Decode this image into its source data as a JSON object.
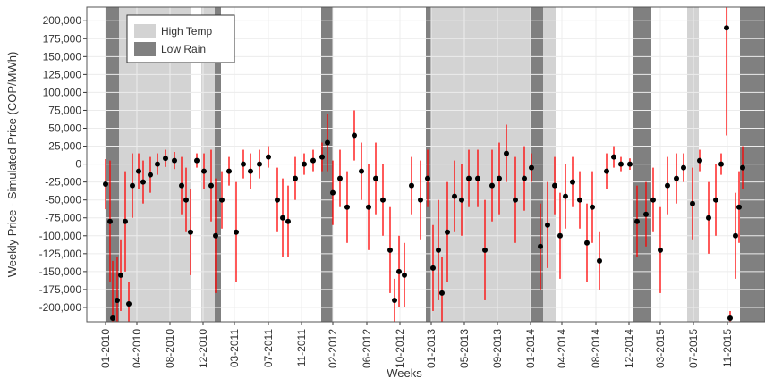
{
  "chart_data": {
    "type": "errorbar",
    "x_label": "Weeks",
    "y_label": "Weekly Price - Simulated Price (COP/MWh)",
    "xlim": [
      -2.1,
      73.7
    ],
    "ylim": [
      -220000,
      219000
    ],
    "xticks": [
      {
        "value": 0,
        "label": "01-2010"
      },
      {
        "value": 3.5,
        "label": "04-2010"
      },
      {
        "value": 7.2,
        "label": "08-2010"
      },
      {
        "value": 10.9,
        "label": "12-2010"
      },
      {
        "value": 14.4,
        "label": "03-2011"
      },
      {
        "value": 18.2,
        "label": "07-2011"
      },
      {
        "value": 21.9,
        "label": "11-2011"
      },
      {
        "value": 25.4,
        "label": "02-2012"
      },
      {
        "value": 29.2,
        "label": "06-2012"
      },
      {
        "value": 32.9,
        "label": "10-2012"
      },
      {
        "value": 36.4,
        "label": "01-2013"
      },
      {
        "value": 40.1,
        "label": "05-2013"
      },
      {
        "value": 43.8,
        "label": "09-2013"
      },
      {
        "value": 47.5,
        "label": "01-2014"
      },
      {
        "value": 51,
        "label": "04-2014"
      },
      {
        "value": 54.8,
        "label": "08-2014"
      },
      {
        "value": 58.5,
        "label": "12-2014"
      },
      {
        "value": 62,
        "label": "03-2015"
      },
      {
        "value": 65.7,
        "label": "07-2015"
      },
      {
        "value": 69.5,
        "label": "11-2015"
      }
    ],
    "yticks": [
      {
        "value": -200000,
        "label": "-200,000"
      },
      {
        "value": -175000,
        "label": "-175,000"
      },
      {
        "value": -150000,
        "label": "-150,000"
      },
      {
        "value": -125000,
        "label": "-125,000"
      },
      {
        "value": -100000,
        "label": "-100,000"
      },
      {
        "value": -75000,
        "label": "-75,000"
      },
      {
        "value": -50000,
        "label": "-50,000"
      },
      {
        "value": -25000,
        "label": "-25,000"
      },
      0,
      {
        "value": 25000,
        "label": "25,000"
      },
      {
        "value": 50000,
        "label": "50,000"
      },
      {
        "value": 75000,
        "label": "75,000"
      },
      {
        "value": 100000,
        "label": "100,000"
      },
      {
        "value": 125000,
        "label": "125,000"
      },
      {
        "value": 150000,
        "label": "150,000"
      },
      {
        "value": 175000,
        "label": "175,000"
      },
      {
        "value": 200000,
        "label": "200,000"
      }
    ],
    "regions": [
      {
        "name": "High Temp",
        "color": "#d3d3d3",
        "spans": [
          [
            1.5,
            9.5
          ],
          [
            10.7,
            12.2
          ],
          [
            35.8,
            47.5
          ],
          [
            48.9,
            50.3
          ],
          [
            65,
            66.3
          ]
        ]
      },
      {
        "name": "Low Rain",
        "color": "#808080",
        "spans": [
          [
            0.1,
            1.5
          ],
          [
            12.2,
            12.9
          ],
          [
            24.1,
            25.4
          ],
          [
            35.8,
            36.4
          ],
          [
            47.5,
            48.9
          ],
          [
            59,
            61
          ],
          [
            70.9,
            73.7
          ]
        ]
      }
    ],
    "series": [
      {
        "color": "#ff0000",
        "x": [
          0,
          0.5,
          0.8,
          1.3,
          1.7,
          2.2,
          2.6,
          3,
          3.7,
          4.2,
          5,
          5.8,
          6.7,
          7.7,
          8.5,
          9,
          9.5,
          10.2,
          11,
          11.8,
          12.3,
          13,
          13.8,
          14.6,
          15.4,
          16.2,
          17.2,
          18.2,
          19.2,
          19.8,
          20.4,
          21.2,
          22.2,
          23.2,
          24.2,
          24.8,
          25.4,
          26.2,
          27,
          27.8,
          28.6,
          29.4,
          30.2,
          31,
          31.8,
          32.3,
          32.8,
          33.4,
          34.2,
          35.2,
          36,
          36.6,
          37.2,
          37.6,
          38.2,
          39,
          39.8,
          40.6,
          41.6,
          42.4,
          43.2,
          44,
          44.8,
          45.8,
          46.8,
          47.6,
          48.6,
          49.4,
          50.2,
          50.8,
          51.4,
          52.2,
          53,
          53.8,
          54.4,
          55.2,
          56,
          56.8,
          57.6,
          58.6,
          59.4,
          60.4,
          61.2,
          62,
          62.8,
          63.8,
          64.6,
          65.6,
          66.4,
          67.4,
          68.2,
          68.8,
          69.4,
          69.8,
          70.4,
          70.8,
          71.2
        ],
        "values": [
          -28000,
          -80000,
          -215000,
          -190000,
          -155000,
          -80000,
          -195000,
          -30000,
          -10000,
          -25000,
          -15000,
          0,
          8000,
          5000,
          -30000,
          -50000,
          -95000,
          5000,
          -10000,
          -30000,
          -100000,
          -50000,
          -10000,
          -95000,
          0,
          -10000,
          0,
          10000,
          -50000,
          -75000,
          -80000,
          -20000,
          0,
          5000,
          10000,
          30000,
          -40000,
          -20000,
          -60000,
          40000,
          -10000,
          -60000,
          -20000,
          -50000,
          -120000,
          -190000,
          -150000,
          -155000,
          -30000,
          -50000,
          -20000,
          -145000,
          -120000,
          -180000,
          -95000,
          -45000,
          -50000,
          -20000,
          -20000,
          -120000,
          -30000,
          -20000,
          15000,
          -50000,
          -20000,
          -5000,
          -115000,
          -85000,
          -30000,
          -100000,
          -45000,
          -25000,
          -50000,
          -110000,
          -60000,
          -135000,
          -10000,
          10000,
          0,
          0,
          -80000,
          -70000,
          -50000,
          -120000,
          -30000,
          -20000,
          -5000,
          -55000,
          5000,
          -75000,
          -50000,
          0,
          190000,
          -215000,
          -100000,
          -60000,
          -5000
        ],
        "error": [
          35000,
          85000,
          80000,
          60000,
          50000,
          70000,
          30000,
          45000,
          25000,
          30000,
          25000,
          15000,
          12000,
          12000,
          40000,
          45000,
          60000,
          10000,
          25000,
          50000,
          80000,
          40000,
          20000,
          70000,
          20000,
          25000,
          20000,
          15000,
          45000,
          55000,
          50000,
          30000,
          15000,
          15000,
          20000,
          40000,
          45000,
          40000,
          50000,
          35000,
          40000,
          60000,
          50000,
          50000,
          60000,
          30000,
          50000,
          45000,
          40000,
          55000,
          40000,
          60000,
          70000,
          50000,
          70000,
          50000,
          50000,
          40000,
          40000,
          70000,
          50000,
          50000,
          40000,
          60000,
          45000,
          20000,
          60000,
          60000,
          40000,
          60000,
          45000,
          35000,
          40000,
          55000,
          50000,
          40000,
          25000,
          15000,
          10000,
          8000,
          50000,
          45000,
          45000,
          60000,
          40000,
          35000,
          20000,
          50000,
          15000,
          50000,
          50000,
          15000,
          150000,
          10000,
          60000,
          50000,
          30000
        ]
      }
    ]
  }
}
